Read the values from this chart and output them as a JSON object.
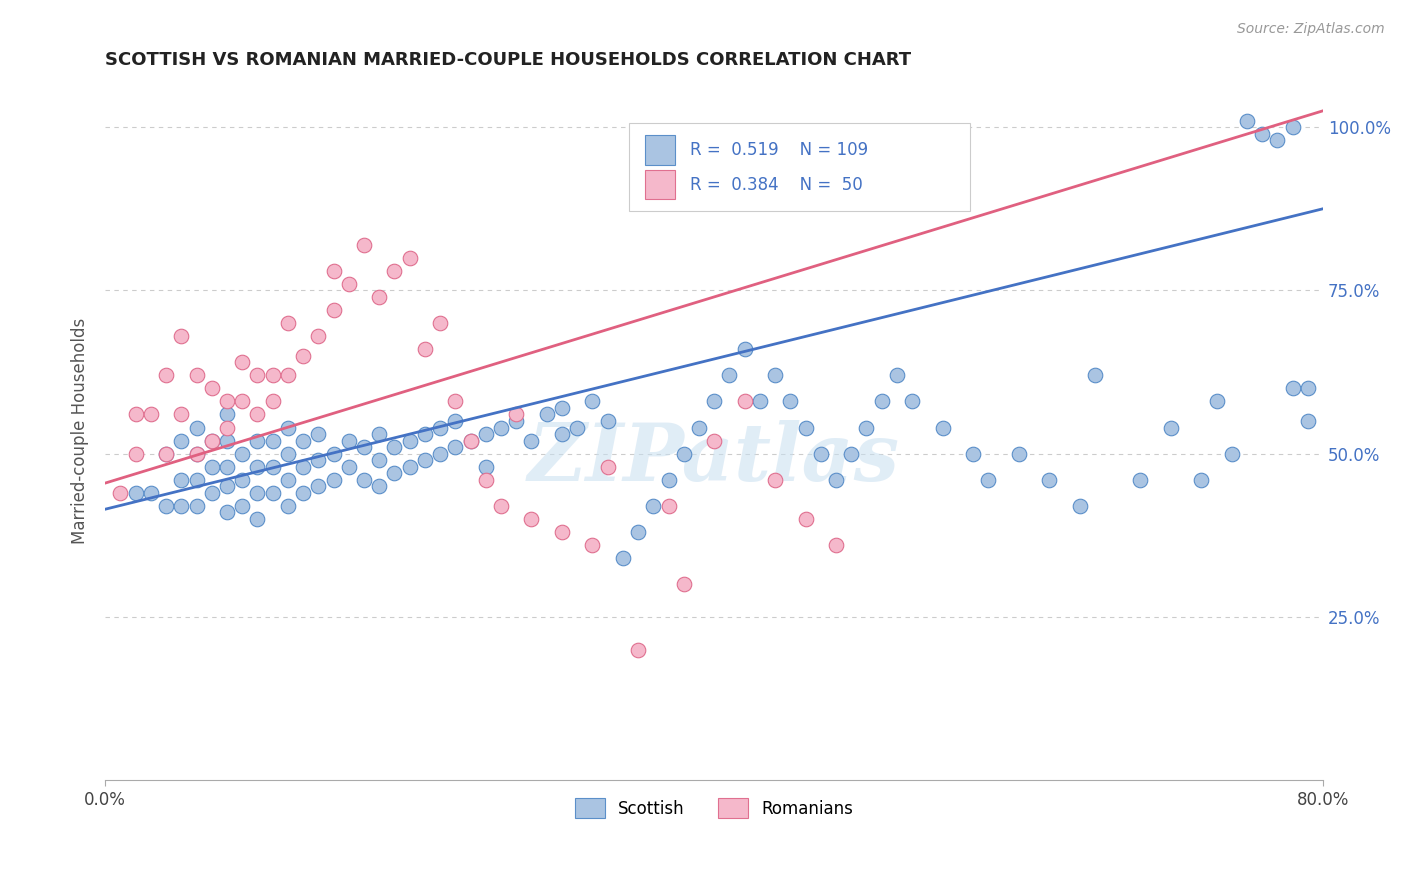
{
  "title": "SCOTTISH VS ROMANIAN MARRIED-COUPLE HOUSEHOLDS CORRELATION CHART",
  "source": "Source: ZipAtlas.com",
  "ylabel": "Married-couple Households",
  "xlim": [
    0.0,
    0.8
  ],
  "ylim": [
    0.0,
    1.07
  ],
  "xticks": [
    0.0,
    0.8
  ],
  "xticklabels": [
    "0.0%",
    "80.0%"
  ],
  "ytick_positions": [
    0.25,
    0.5,
    0.75,
    1.0
  ],
  "ytick_labels": [
    "25.0%",
    "50.0%",
    "75.0%",
    "100.0%"
  ],
  "scottish_R": 0.519,
  "scottish_N": 109,
  "romanian_R": 0.384,
  "romanian_N": 50,
  "scottish_color": "#aac4e2",
  "scottish_edge_color": "#5b8fc9",
  "scottish_line_color": "#4472c4",
  "romanian_color": "#f5b8cb",
  "romanian_edge_color": "#e07090",
  "romanian_line_color": "#e06080",
  "right_tick_color": "#4472c4",
  "legend_label_1": "Scottish",
  "legend_label_2": "Romanians",
  "watermark": "ZIPatlas",
  "scot_line_x0": 0.0,
  "scot_line_y0": 0.415,
  "scot_line_x1": 0.8,
  "scot_line_y1": 0.875,
  "rom_line_x0": 0.0,
  "rom_line_y0": 0.455,
  "rom_line_x1": 0.8,
  "rom_line_y1": 1.025,
  "scottish_x": [
    0.02,
    0.03,
    0.04,
    0.04,
    0.05,
    0.05,
    0.05,
    0.06,
    0.06,
    0.06,
    0.06,
    0.07,
    0.07,
    0.07,
    0.08,
    0.08,
    0.08,
    0.08,
    0.08,
    0.09,
    0.09,
    0.09,
    0.1,
    0.1,
    0.1,
    0.1,
    0.11,
    0.11,
    0.11,
    0.12,
    0.12,
    0.12,
    0.12,
    0.13,
    0.13,
    0.13,
    0.14,
    0.14,
    0.14,
    0.15,
    0.15,
    0.16,
    0.16,
    0.17,
    0.17,
    0.18,
    0.18,
    0.18,
    0.19,
    0.19,
    0.2,
    0.2,
    0.21,
    0.21,
    0.22,
    0.22,
    0.23,
    0.23,
    0.24,
    0.25,
    0.25,
    0.26,
    0.27,
    0.28,
    0.29,
    0.3,
    0.3,
    0.31,
    0.32,
    0.33,
    0.34,
    0.35,
    0.36,
    0.37,
    0.38,
    0.39,
    0.4,
    0.41,
    0.42,
    0.43,
    0.44,
    0.45,
    0.46,
    0.47,
    0.48,
    0.49,
    0.5,
    0.51,
    0.52,
    0.53,
    0.55,
    0.57,
    0.58,
    0.6,
    0.62,
    0.64,
    0.65,
    0.68,
    0.7,
    0.72,
    0.73,
    0.74,
    0.75,
    0.76,
    0.77,
    0.78,
    0.78,
    0.79,
    0.79
  ],
  "scottish_y": [
    0.44,
    0.44,
    0.42,
    0.5,
    0.42,
    0.46,
    0.52,
    0.42,
    0.46,
    0.5,
    0.54,
    0.44,
    0.48,
    0.52,
    0.41,
    0.45,
    0.48,
    0.52,
    0.56,
    0.42,
    0.46,
    0.5,
    0.4,
    0.44,
    0.48,
    0.52,
    0.44,
    0.48,
    0.52,
    0.42,
    0.46,
    0.5,
    0.54,
    0.44,
    0.48,
    0.52,
    0.45,
    0.49,
    0.53,
    0.46,
    0.5,
    0.48,
    0.52,
    0.46,
    0.51,
    0.45,
    0.49,
    0.53,
    0.47,
    0.51,
    0.48,
    0.52,
    0.49,
    0.53,
    0.5,
    0.54,
    0.51,
    0.55,
    0.52,
    0.48,
    0.53,
    0.54,
    0.55,
    0.52,
    0.56,
    0.53,
    0.57,
    0.54,
    0.58,
    0.55,
    0.34,
    0.38,
    0.42,
    0.46,
    0.5,
    0.54,
    0.58,
    0.62,
    0.66,
    0.58,
    0.62,
    0.58,
    0.54,
    0.5,
    0.46,
    0.5,
    0.54,
    0.58,
    0.62,
    0.58,
    0.54,
    0.5,
    0.46,
    0.5,
    0.46,
    0.42,
    0.62,
    0.46,
    0.54,
    0.46,
    0.58,
    0.5,
    1.01,
    0.99,
    0.98,
    1.0,
    0.6,
    0.6,
    0.55
  ],
  "romanian_x": [
    0.01,
    0.02,
    0.02,
    0.03,
    0.04,
    0.04,
    0.05,
    0.05,
    0.06,
    0.06,
    0.07,
    0.07,
    0.08,
    0.08,
    0.09,
    0.09,
    0.1,
    0.1,
    0.11,
    0.11,
    0.12,
    0.12,
    0.13,
    0.14,
    0.15,
    0.15,
    0.16,
    0.17,
    0.18,
    0.19,
    0.2,
    0.21,
    0.22,
    0.23,
    0.24,
    0.25,
    0.26,
    0.27,
    0.28,
    0.3,
    0.32,
    0.33,
    0.35,
    0.37,
    0.38,
    0.4,
    0.42,
    0.44,
    0.46,
    0.48
  ],
  "romanian_y": [
    0.44,
    0.5,
    0.56,
    0.56,
    0.5,
    0.62,
    0.56,
    0.68,
    0.5,
    0.62,
    0.52,
    0.6,
    0.54,
    0.58,
    0.58,
    0.64,
    0.56,
    0.62,
    0.58,
    0.62,
    0.62,
    0.7,
    0.65,
    0.68,
    0.72,
    0.78,
    0.76,
    0.82,
    0.74,
    0.78,
    0.8,
    0.66,
    0.7,
    0.58,
    0.52,
    0.46,
    0.42,
    0.56,
    0.4,
    0.38,
    0.36,
    0.48,
    0.2,
    0.42,
    0.3,
    0.52,
    0.58,
    0.46,
    0.4,
    0.36
  ]
}
